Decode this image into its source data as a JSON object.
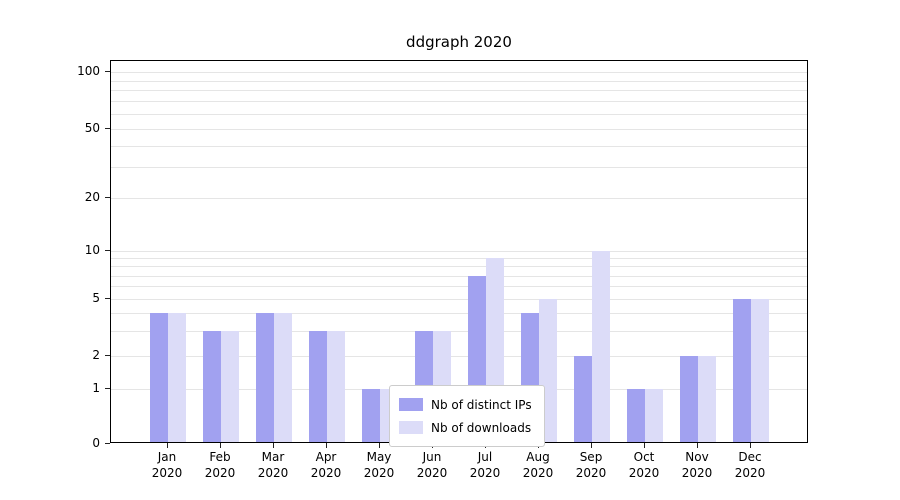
{
  "chart_data": {
    "type": "bar",
    "title": "ddgraph 2020",
    "categories": [
      "Jan 2020",
      "Feb 2020",
      "Mar 2020",
      "Apr 2020",
      "May 2020",
      "Jun 2020",
      "Jul 2020",
      "Aug 2020",
      "Sep 2020",
      "Oct 2020",
      "Nov 2020",
      "Dec 2020"
    ],
    "series": [
      {
        "name": "Nb of distinct IPs",
        "color": "#a1a1f0",
        "values": [
          4,
          3,
          4,
          3,
          1,
          3,
          7,
          4,
          2,
          1,
          2,
          5
        ]
      },
      {
        "name": "Nb of downloads",
        "color": "#dcdcf8",
        "values": [
          4,
          3,
          4,
          3,
          1,
          3,
          9,
          5,
          10,
          1,
          2,
          5
        ]
      }
    ],
    "yscale": "symlog",
    "yticks": [
      0,
      1,
      2,
      5,
      10,
      20,
      50,
      100
    ],
    "ylim": [
      0,
      120
    ],
    "grid": "horizontal",
    "legend_position": "lower center"
  }
}
